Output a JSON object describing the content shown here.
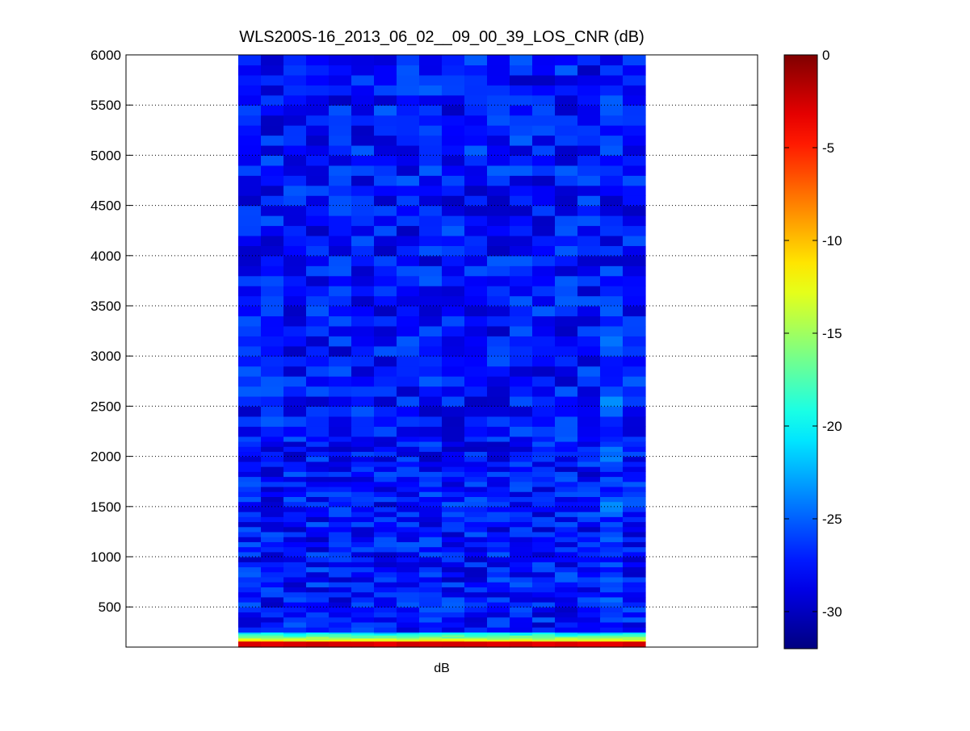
{
  "chart_data": {
    "type": "heatmap",
    "title": "WLS200S-16_2013_06_02__09_00_39_LOS_CNR (dB)",
    "xlabel": "dB",
    "ylabel": "",
    "ylim": [
      100,
      6000
    ],
    "y_ticks": [
      500,
      1000,
      1500,
      2000,
      2500,
      3000,
      3500,
      4000,
      4500,
      5000,
      5500,
      6000
    ],
    "x_ticks": [],
    "grid": "horizontal dotted",
    "colormap": "jet",
    "colorbar": {
      "range": [
        -32,
        0
      ],
      "ticks": [
        -30,
        -25,
        -20,
        -15,
        -10,
        -5,
        0
      ]
    },
    "columns": 18,
    "value_summary": {
      "near_ground_100_to_160m": -3,
      "transition_layer_160_to_240m": -16,
      "background_above_250m": -27.5,
      "background_min": -31.5,
      "background_max": -23.5
    }
  }
}
